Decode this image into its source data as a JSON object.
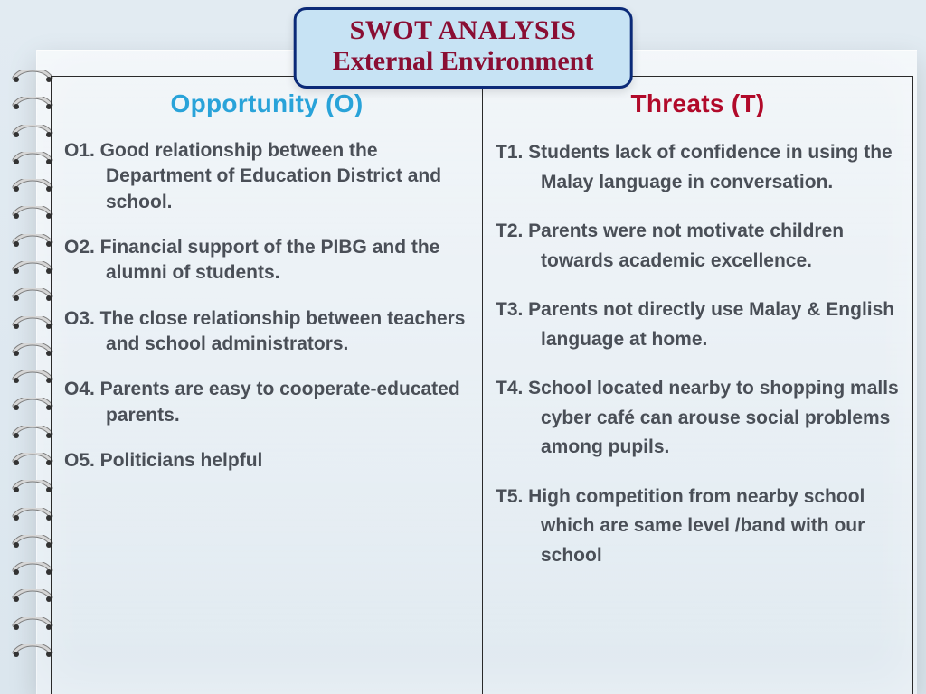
{
  "title": {
    "line1": "SWOT ANALYSIS",
    "line2": "External Environment",
    "pill_bg": "#c7e3f4",
    "pill_border": "#0b2a78",
    "text_color": "#8a0e33",
    "fontsize": 30
  },
  "layout": {
    "page_bg_gradient_top": "#e2ebf2",
    "page_bg_gradient_bottom": "#dbe6ee",
    "grid_border_color": "#2a2a2a",
    "body_text_color": "#4a4f57",
    "body_fontsize": 21,
    "heading_fontsize": 28,
    "spiral_rings": 22,
    "spiral_metal_color": "#d6d6d6",
    "spiral_shadow_color": "#7d7d7d"
  },
  "columns": {
    "opportunity": {
      "heading": "Opportunity (O)",
      "heading_color": "#29a3d9",
      "items": [
        "O1.  Good relationship between the Department of Education District and school.",
        "O2.  Financial support of the PIBG and the alumni of students.",
        "O3. The close relationship between teachers and school administrators.",
        "O4. Parents are easy to cooperate-educated parents.",
        "O5. Politicians helpful"
      ]
    },
    "threats": {
      "heading": "Threats (T)",
      "heading_color": "#b10a2a",
      "items": [
        "T1. Students lack of confidence in using the  Malay language in conversation.",
        "T2.  Parents were not motivate children towards academic excellence.",
        "T3. Parents not directly use Malay & English language  at home.",
        "T4. School located nearby to shopping malls cyber café can arouse social problems among pupils.",
        "T5.  High competition from nearby school which are same level /band with our school"
      ]
    }
  }
}
